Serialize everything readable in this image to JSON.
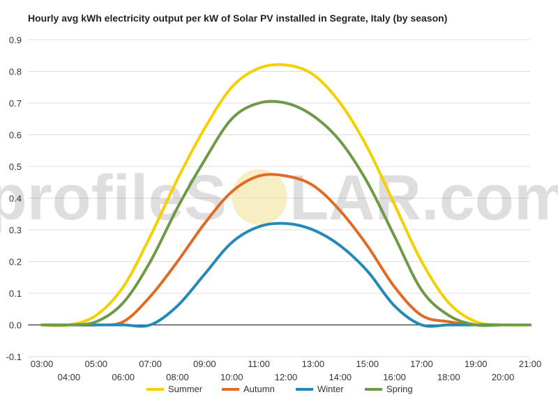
{
  "chart_data": {
    "type": "line",
    "title": "Hourly avg kWh electricity output per kW of Solar PV installed in Segrate, Italy (by season)",
    "xlabel": "",
    "ylabel": "",
    "ylim": [
      -0.1,
      0.9
    ],
    "yticks": [
      "-0.1",
      "0.0",
      "0.1",
      "0.2",
      "0.3",
      "0.4",
      "0.5",
      "0.6",
      "0.7",
      "0.8",
      "0.9"
    ],
    "x": [
      "03:00",
      "04:00",
      "05:00",
      "06:00",
      "07:00",
      "08:00",
      "09:00",
      "10:00",
      "11:00",
      "12:00",
      "13:00",
      "14:00",
      "15:00",
      "16:00",
      "17:00",
      "18:00",
      "19:00",
      "20:00",
      "21:00"
    ],
    "grid": true,
    "legend": "bottom",
    "series": [
      {
        "name": "Summer",
        "color": "#f5d000",
        "values": [
          0.0,
          0.0,
          0.03,
          0.12,
          0.28,
          0.46,
          0.62,
          0.75,
          0.81,
          0.82,
          0.79,
          0.7,
          0.56,
          0.38,
          0.2,
          0.07,
          0.01,
          0.0,
          0.0
        ]
      },
      {
        "name": "Autumn",
        "color": "#e06b24",
        "values": [
          0.0,
          0.0,
          0.0,
          0.01,
          0.09,
          0.2,
          0.32,
          0.42,
          0.47,
          0.47,
          0.44,
          0.36,
          0.25,
          0.12,
          0.03,
          0.01,
          0.0,
          0.0,
          0.0
        ]
      },
      {
        "name": "Winter",
        "color": "#2389b7",
        "values": [
          0.0,
          0.0,
          0.0,
          0.0,
          0.0,
          0.06,
          0.16,
          0.26,
          0.31,
          0.32,
          0.3,
          0.25,
          0.17,
          0.06,
          0.0,
          0.0,
          0.0,
          0.0,
          0.0
        ]
      },
      {
        "name": "Spring",
        "color": "#6e9a48",
        "values": [
          0.0,
          0.0,
          0.01,
          0.07,
          0.2,
          0.37,
          0.52,
          0.65,
          0.7,
          0.7,
          0.66,
          0.58,
          0.45,
          0.28,
          0.11,
          0.03,
          0.0,
          0.0,
          0.0
        ]
      }
    ]
  },
  "watermark": {
    "text_before": "profileS",
    "text_after": "LAR.com",
    "sun_color": "#f6e8b0"
  }
}
